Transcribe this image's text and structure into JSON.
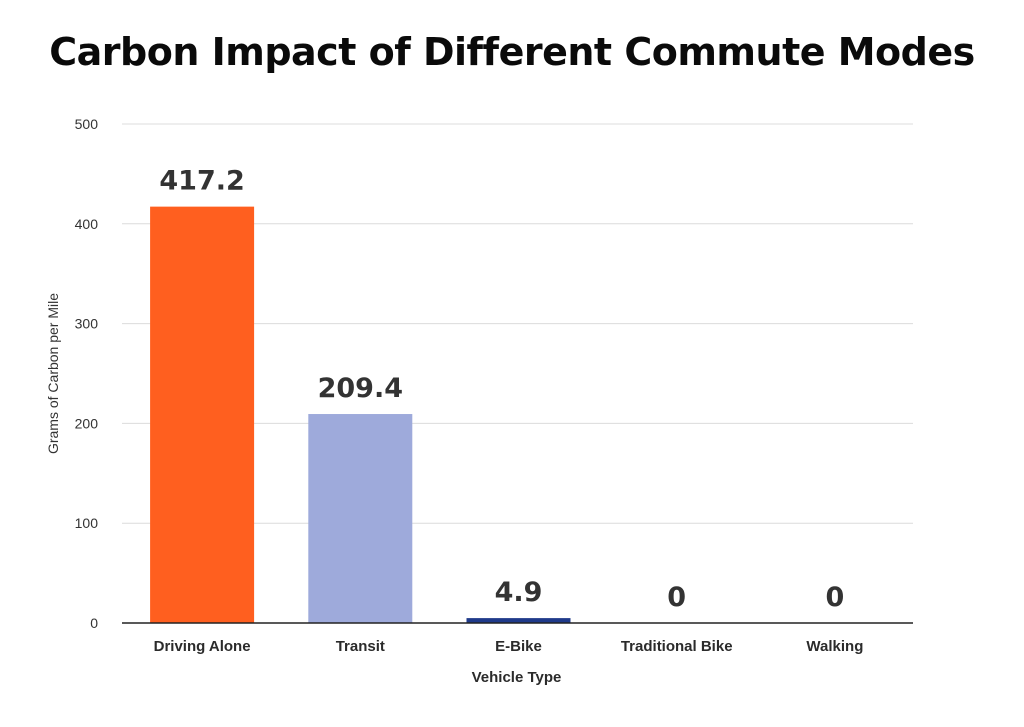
{
  "chart_data": {
    "type": "bar",
    "title": "Carbon Impact of Different Commute Modes",
    "xlabel": "Vehicle Type",
    "ylabel": "Grams of Carbon per Mile",
    "categories": [
      "Driving Alone",
      "Transit",
      "E-Bike",
      "Traditional Bike",
      "Walking"
    ],
    "values": [
      417.2,
      209.4,
      4.9,
      0,
      0
    ],
    "data_labels": [
      "417.2",
      "209.4",
      "4.9",
      "0",
      "0"
    ],
    "bar_colors": [
      "#ff5f1f",
      "#9eaadb",
      "#1f3a8a",
      "#1f3a8a",
      "#1f3a8a"
    ],
    "ylim": [
      0,
      500
    ],
    "yticks": [
      0,
      100,
      200,
      300,
      400,
      500
    ],
    "ytick_labels": [
      "0",
      "100",
      "200",
      "300",
      "400",
      "500"
    ],
    "grid": true,
    "legend": "none"
  }
}
